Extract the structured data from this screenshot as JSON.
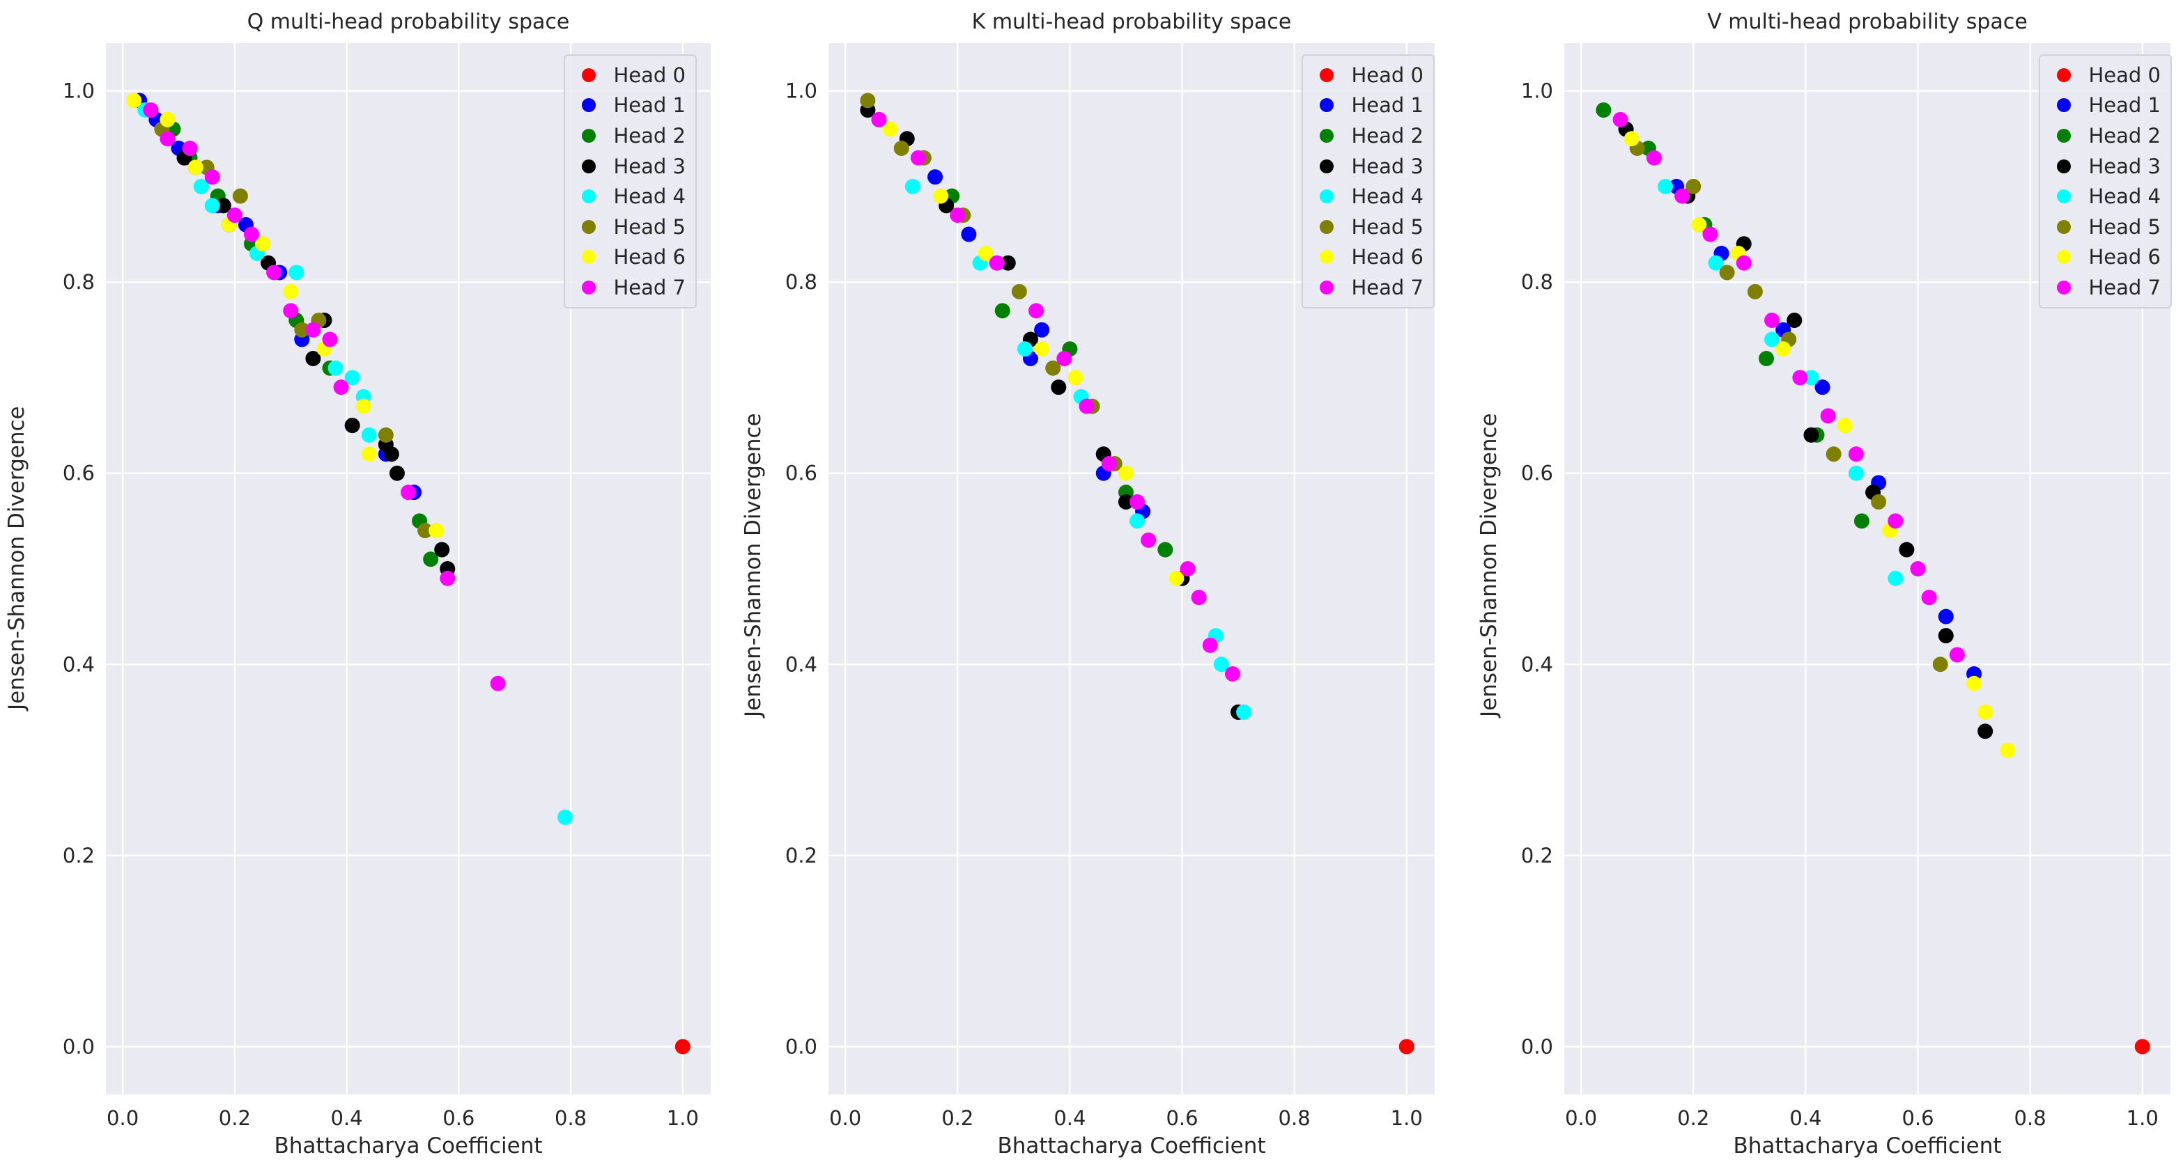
{
  "chart_data": [
    {
      "type": "scatter",
      "title": "Q multi-head probability space",
      "xlabel": "Bhattacharya Coefficient",
      "ylabel": "Jensen-Shannon Divergence",
      "xlim": [
        -0.03,
        1.05
      ],
      "ylim": [
        -0.05,
        1.05
      ],
      "xticks": [
        "0.0",
        "0.2",
        "0.4",
        "0.6",
        "0.8",
        "1.0"
      ],
      "yticks": [
        "0.0",
        "0.2",
        "0.4",
        "0.6",
        "0.8",
        "1.0"
      ],
      "grid": true,
      "legend_position": "top-right",
      "series": [
        {
          "name": "Head 0",
          "color": "#ff0000",
          "points": [
            [
              1.0,
              0.0
            ]
          ]
        },
        {
          "name": "Head 1",
          "color": "#0000ff",
          "points": [
            [
              0.03,
              0.99
            ],
            [
              0.06,
              0.97
            ],
            [
              0.1,
              0.94
            ],
            [
              0.13,
              0.92
            ],
            [
              0.17,
              0.88
            ],
            [
              0.19,
              0.86
            ],
            [
              0.22,
              0.86
            ],
            [
              0.28,
              0.81
            ],
            [
              0.32,
              0.74
            ],
            [
              0.47,
              0.62
            ],
            [
              0.52,
              0.58
            ]
          ]
        },
        {
          "name": "Head 2",
          "color": "#008000",
          "points": [
            [
              0.09,
              0.96
            ],
            [
              0.12,
              0.93
            ],
            [
              0.17,
              0.89
            ],
            [
              0.23,
              0.84
            ],
            [
              0.31,
              0.76
            ],
            [
              0.37,
              0.71
            ],
            [
              0.53,
              0.55
            ],
            [
              0.55,
              0.51
            ]
          ]
        },
        {
          "name": "Head 3",
          "color": "#000000",
          "points": [
            [
              0.11,
              0.93
            ],
            [
              0.18,
              0.88
            ],
            [
              0.26,
              0.82
            ],
            [
              0.34,
              0.72
            ],
            [
              0.36,
              0.76
            ],
            [
              0.41,
              0.65
            ],
            [
              0.47,
              0.63
            ],
            [
              0.48,
              0.62
            ],
            [
              0.49,
              0.6
            ],
            [
              0.57,
              0.52
            ],
            [
              0.58,
              0.5
            ]
          ]
        },
        {
          "name": "Head 4",
          "color": "#00ffff",
          "points": [
            [
              0.04,
              0.98
            ],
            [
              0.14,
              0.9
            ],
            [
              0.16,
              0.88
            ],
            [
              0.24,
              0.83
            ],
            [
              0.31,
              0.81
            ],
            [
              0.38,
              0.71
            ],
            [
              0.41,
              0.7
            ],
            [
              0.43,
              0.68
            ],
            [
              0.44,
              0.64
            ],
            [
              0.79,
              0.24
            ]
          ]
        },
        {
          "name": "Head 5",
          "color": "#808000",
          "points": [
            [
              0.07,
              0.96
            ],
            [
              0.15,
              0.92
            ],
            [
              0.21,
              0.89
            ],
            [
              0.25,
              0.84
            ],
            [
              0.32,
              0.75
            ],
            [
              0.35,
              0.76
            ],
            [
              0.47,
              0.64
            ],
            [
              0.54,
              0.54
            ]
          ]
        },
        {
          "name": "Head 6",
          "color": "#ffff00",
          "points": [
            [
              0.02,
              0.99
            ],
            [
              0.08,
              0.97
            ],
            [
              0.13,
              0.92
            ],
            [
              0.19,
              0.86
            ],
            [
              0.25,
              0.84
            ],
            [
              0.3,
              0.79
            ],
            [
              0.36,
              0.73
            ],
            [
              0.43,
              0.67
            ],
            [
              0.44,
              0.62
            ],
            [
              0.56,
              0.54
            ]
          ]
        },
        {
          "name": "Head 7",
          "color": "#ff00ff",
          "points": [
            [
              0.05,
              0.98
            ],
            [
              0.08,
              0.95
            ],
            [
              0.12,
              0.94
            ],
            [
              0.16,
              0.91
            ],
            [
              0.2,
              0.87
            ],
            [
              0.23,
              0.85
            ],
            [
              0.27,
              0.81
            ],
            [
              0.3,
              0.77
            ],
            [
              0.34,
              0.75
            ],
            [
              0.37,
              0.74
            ],
            [
              0.39,
              0.69
            ],
            [
              0.51,
              0.58
            ],
            [
              0.58,
              0.49
            ],
            [
              0.67,
              0.38
            ]
          ]
        }
      ]
    },
    {
      "type": "scatter",
      "title": "K multi-head probability space",
      "xlabel": "Bhattacharya Coefficient",
      "ylabel": "Jensen-Shannon Divergence",
      "xlim": [
        -0.03,
        1.05
      ],
      "ylim": [
        -0.05,
        1.05
      ],
      "xticks": [
        "0.0",
        "0.2",
        "0.4",
        "0.6",
        "0.8",
        "1.0"
      ],
      "yticks": [
        "0.0",
        "0.2",
        "0.4",
        "0.6",
        "0.8",
        "1.0"
      ],
      "grid": true,
      "legend_position": "top-right",
      "series": [
        {
          "name": "Head 0",
          "color": "#ff0000",
          "points": [
            [
              1.0,
              0.0
            ]
          ]
        },
        {
          "name": "Head 1",
          "color": "#0000ff",
          "points": [
            [
              0.16,
              0.91
            ],
            [
              0.22,
              0.85
            ],
            [
              0.33,
              0.72
            ],
            [
              0.35,
              0.75
            ],
            [
              0.46,
              0.6
            ],
            [
              0.53,
              0.56
            ]
          ]
        },
        {
          "name": "Head 2",
          "color": "#008000",
          "points": [
            [
              0.06,
              0.97
            ],
            [
              0.19,
              0.89
            ],
            [
              0.28,
              0.77
            ],
            [
              0.4,
              0.73
            ],
            [
              0.5,
              0.58
            ],
            [
              0.57,
              0.52
            ]
          ]
        },
        {
          "name": "Head 3",
          "color": "#000000",
          "points": [
            [
              0.04,
              0.98
            ],
            [
              0.11,
              0.95
            ],
            [
              0.18,
              0.88
            ],
            [
              0.29,
              0.82
            ],
            [
              0.33,
              0.74
            ],
            [
              0.38,
              0.69
            ],
            [
              0.46,
              0.62
            ],
            [
              0.5,
              0.57
            ],
            [
              0.6,
              0.49
            ],
            [
              0.7,
              0.35
            ]
          ]
        },
        {
          "name": "Head 4",
          "color": "#00ffff",
          "points": [
            [
              0.12,
              0.9
            ],
            [
              0.24,
              0.82
            ],
            [
              0.32,
              0.73
            ],
            [
              0.42,
              0.68
            ],
            [
              0.52,
              0.55
            ],
            [
              0.66,
              0.43
            ],
            [
              0.67,
              0.4
            ],
            [
              0.71,
              0.35
            ]
          ]
        },
        {
          "name": "Head 5",
          "color": "#808000",
          "points": [
            [
              0.04,
              0.99
            ],
            [
              0.1,
              0.94
            ],
            [
              0.14,
              0.93
            ],
            [
              0.21,
              0.87
            ],
            [
              0.31,
              0.79
            ],
            [
              0.37,
              0.71
            ],
            [
              0.44,
              0.67
            ],
            [
              0.48,
              0.61
            ]
          ]
        },
        {
          "name": "Head 6",
          "color": "#ffff00",
          "points": [
            [
              0.08,
              0.96
            ],
            [
              0.17,
              0.89
            ],
            [
              0.25,
              0.83
            ],
            [
              0.35,
              0.73
            ],
            [
              0.41,
              0.7
            ],
            [
              0.5,
              0.6
            ],
            [
              0.59,
              0.49
            ]
          ]
        },
        {
          "name": "Head 7",
          "color": "#ff00ff",
          "points": [
            [
              0.06,
              0.97
            ],
            [
              0.13,
              0.93
            ],
            [
              0.2,
              0.87
            ],
            [
              0.27,
              0.82
            ],
            [
              0.34,
              0.77
            ],
            [
              0.39,
              0.72
            ],
            [
              0.43,
              0.67
            ],
            [
              0.47,
              0.61
            ],
            [
              0.52,
              0.57
            ],
            [
              0.54,
              0.53
            ],
            [
              0.61,
              0.5
            ],
            [
              0.63,
              0.47
            ],
            [
              0.65,
              0.42
            ],
            [
              0.69,
              0.39
            ]
          ]
        }
      ]
    },
    {
      "type": "scatter",
      "title": "V multi-head probability space",
      "xlabel": "Bhattacharya Coefficient",
      "ylabel": "Jensen-Shannon Divergence",
      "xlim": [
        -0.03,
        1.05
      ],
      "ylim": [
        -0.05,
        1.05
      ],
      "xticks": [
        "0.0",
        "0.2",
        "0.4",
        "0.6",
        "0.8",
        "1.0"
      ],
      "yticks": [
        "0.0",
        "0.2",
        "0.4",
        "0.6",
        "0.8",
        "1.0"
      ],
      "grid": true,
      "legend_position": "top-right",
      "series": [
        {
          "name": "Head 0",
          "color": "#ff0000",
          "points": [
            [
              1.0,
              0.0
            ]
          ]
        },
        {
          "name": "Head 1",
          "color": "#0000ff",
          "points": [
            [
              0.17,
              0.9
            ],
            [
              0.25,
              0.83
            ],
            [
              0.36,
              0.75
            ],
            [
              0.43,
              0.69
            ],
            [
              0.53,
              0.59
            ],
            [
              0.65,
              0.45
            ],
            [
              0.7,
              0.39
            ]
          ]
        },
        {
          "name": "Head 2",
          "color": "#008000",
          "points": [
            [
              0.04,
              0.98
            ],
            [
              0.12,
              0.94
            ],
            [
              0.22,
              0.86
            ],
            [
              0.33,
              0.72
            ],
            [
              0.42,
              0.64
            ],
            [
              0.5,
              0.55
            ]
          ]
        },
        {
          "name": "Head 3",
          "color": "#000000",
          "points": [
            [
              0.08,
              0.96
            ],
            [
              0.19,
              0.89
            ],
            [
              0.29,
              0.84
            ],
            [
              0.38,
              0.76
            ],
            [
              0.41,
              0.64
            ],
            [
              0.52,
              0.58
            ],
            [
              0.58,
              0.52
            ],
            [
              0.65,
              0.43
            ],
            [
              0.72,
              0.33
            ]
          ]
        },
        {
          "name": "Head 4",
          "color": "#00ffff",
          "points": [
            [
              0.15,
              0.9
            ],
            [
              0.24,
              0.82
            ],
            [
              0.34,
              0.74
            ],
            [
              0.41,
              0.7
            ],
            [
              0.49,
              0.6
            ],
            [
              0.56,
              0.49
            ]
          ]
        },
        {
          "name": "Head 5",
          "color": "#808000",
          "points": [
            [
              0.1,
              0.94
            ],
            [
              0.2,
              0.9
            ],
            [
              0.26,
              0.81
            ],
            [
              0.31,
              0.79
            ],
            [
              0.37,
              0.74
            ],
            [
              0.45,
              0.62
            ],
            [
              0.53,
              0.57
            ],
            [
              0.64,
              0.4
            ]
          ]
        },
        {
          "name": "Head 6",
          "color": "#ffff00",
          "points": [
            [
              0.09,
              0.95
            ],
            [
              0.21,
              0.86
            ],
            [
              0.28,
              0.83
            ],
            [
              0.36,
              0.73
            ],
            [
              0.47,
              0.65
            ],
            [
              0.55,
              0.54
            ],
            [
              0.7,
              0.38
            ],
            [
              0.72,
              0.35
            ],
            [
              0.76,
              0.31
            ]
          ]
        },
        {
          "name": "Head 7",
          "color": "#ff00ff",
          "points": [
            [
              0.07,
              0.97
            ],
            [
              0.13,
              0.93
            ],
            [
              0.18,
              0.89
            ],
            [
              0.23,
              0.85
            ],
            [
              0.29,
              0.82
            ],
            [
              0.34,
              0.76
            ],
            [
              0.39,
              0.7
            ],
            [
              0.44,
              0.66
            ],
            [
              0.49,
              0.62
            ],
            [
              0.56,
              0.55
            ],
            [
              0.6,
              0.5
            ],
            [
              0.62,
              0.47
            ],
            [
              0.67,
              0.41
            ]
          ]
        }
      ]
    }
  ]
}
